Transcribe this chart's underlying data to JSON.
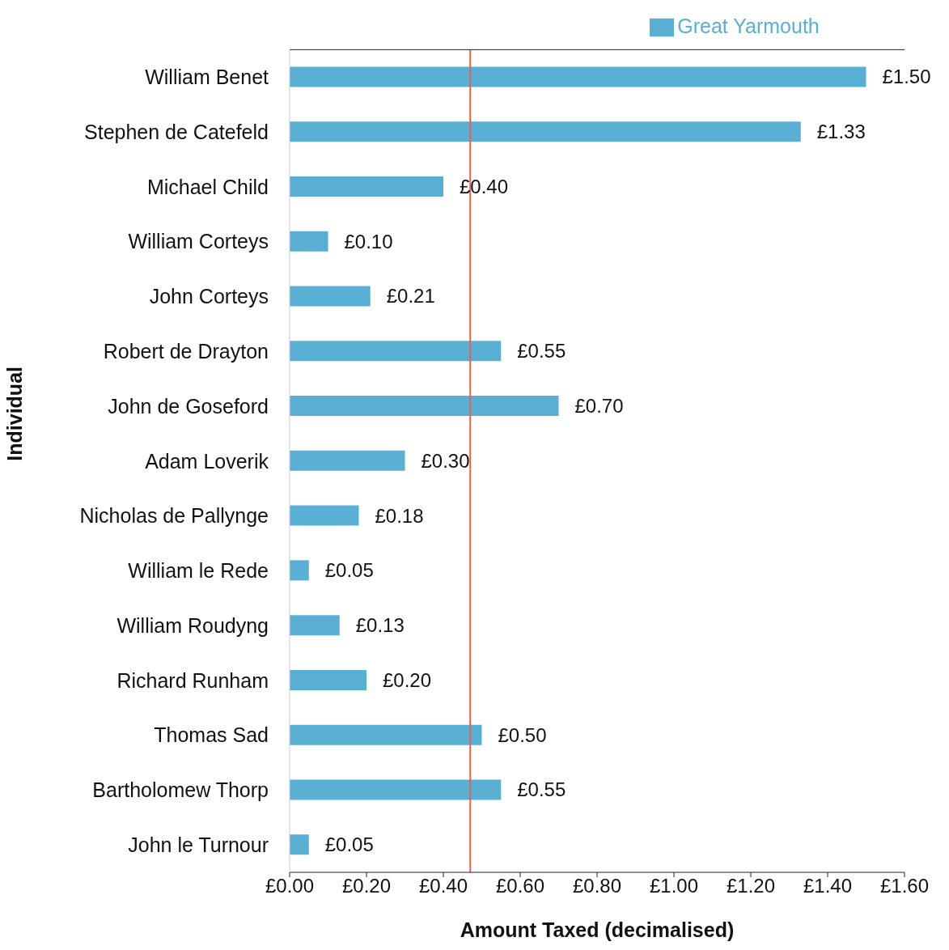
{
  "chart_data": {
    "type": "bar",
    "orientation": "horizontal",
    "xlabel": "Amount Taxed (decimalised)",
    "ylabel": "Individual",
    "categories": [
      "William Benet",
      "Stephen de Catefeld",
      "Michael Child",
      "William Corteys",
      "John Corteys",
      "Robert de Drayton",
      "John de Goseford",
      "Adam Loverik",
      "Nicholas de Pallynge",
      "William le Rede",
      "William Roudyng",
      "Richard Runham",
      "Thomas Sad",
      "Bartholomew Thorp",
      "John le Turnour"
    ],
    "series": [
      {
        "name": "Great Yarmouth",
        "color": "#5aafd5",
        "values": [
          1.5,
          1.33,
          0.4,
          0.1,
          0.21,
          0.55,
          0.7,
          0.3,
          0.18,
          0.05,
          0.13,
          0.2,
          0.5,
          0.55,
          0.05
        ],
        "value_labels": [
          "£1.50",
          "£1.33",
          "£0.40",
          "£0.10",
          "£0.21",
          "£0.55",
          "£0.70",
          "£0.30",
          "£0.18",
          "£0.05",
          "£0.13",
          "£0.20",
          "£0.50",
          "£0.55",
          "£0.05"
        ]
      }
    ],
    "xlim": [
      0,
      1.6
    ],
    "xticks": [
      {
        "value": 0,
        "label": "£0.00"
      },
      {
        "value": 0.2,
        "label": "£0.20"
      },
      {
        "value": 0.4,
        "label": "£0.40"
      },
      {
        "value": 0.6,
        "label": "£0.60"
      },
      {
        "value": 0.8,
        "label": "£0.80"
      },
      {
        "value": 1.0,
        "label": "£1.00"
      },
      {
        "value": 1.2,
        "label": "£1.20"
      },
      {
        "value": 1.4,
        "label": "£1.40"
      },
      {
        "value": 1.6,
        "label": "£1.60"
      }
    ],
    "ref_lines": [
      {
        "axis": "x",
        "value": 0.47,
        "color": "#e8604c"
      }
    ],
    "legend": "top",
    "grid": false
  }
}
